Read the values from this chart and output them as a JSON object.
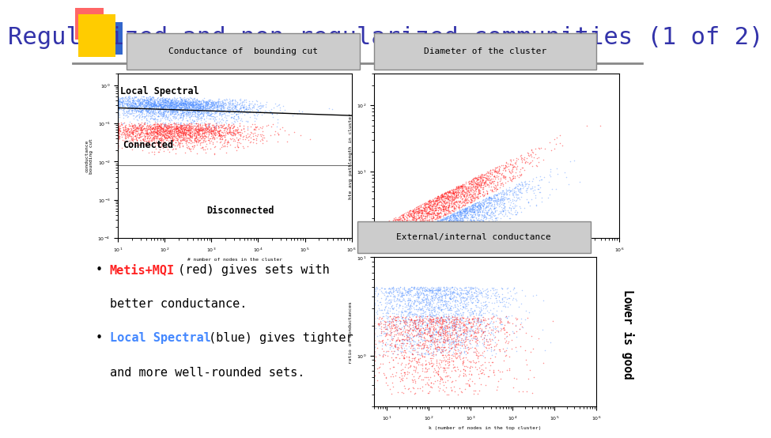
{
  "title": "Regularized and non-regularized communities (1 of 2)",
  "title_color": "#3333aa",
  "title_fontsize": 22,
  "bg_color": "#ffffff",
  "plot1_label": "Conductance of  bounding cut",
  "plot2_label": "Diameter of the cluster",
  "plot3_label": "External/internal conductance",
  "text_local_spectral": "Local Spectral",
  "text_connected": "Connected",
  "text_disconnected": "Disconnected",
  "right_label": "Lower is good",
  "blue_color": "#4488ff",
  "red_color": "#ff2222",
  "logo_yellow": "#ffcc00",
  "logo_red": "#ff6666",
  "logo_blue": "#3366cc",
  "header_line_color": "#888888",
  "box_face_color": "#cccccc",
  "box_edge_color": "#888888"
}
